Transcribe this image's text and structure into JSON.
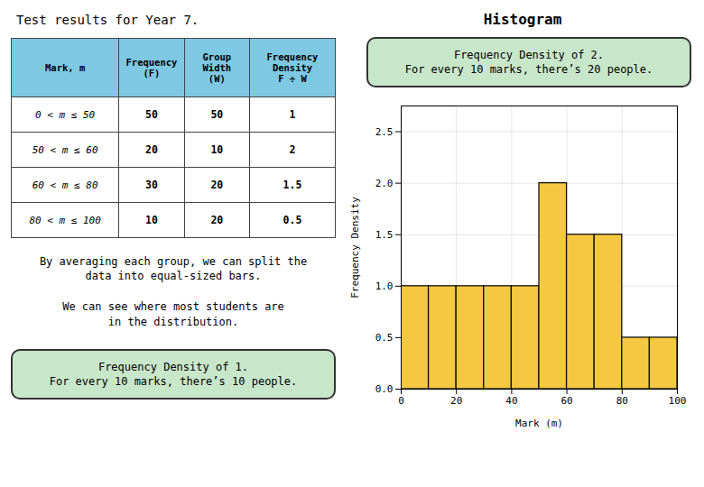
{
  "chart_data": {
    "type": "histogram",
    "title": "Histogram",
    "bins": [
      0,
      10,
      20,
      30,
      40,
      50,
      60,
      70,
      80,
      90,
      100
    ],
    "values": [
      1,
      1,
      1,
      1,
      1,
      2,
      1.5,
      1.5,
      0.5,
      0.5
    ],
    "color": "#F5C842",
    "xlabel": "Mark (m)",
    "ylabel": "Frequency Density",
    "xlim": [
      0,
      100
    ],
    "ylim": [
      0,
      2.75
    ],
    "xticks": [
      0,
      20,
      40,
      60,
      80,
      100
    ],
    "yticks": [
      {
        "value": 0,
        "label": "0.0"
      },
      0.5,
      {
        "value": 1,
        "label": "1.0"
      },
      1.5,
      {
        "value": 2,
        "label": "2.0"
      },
      2.5
    ],
    "grid": true,
    "table": {
      "title": "Test results for Year 7.",
      "headers": [
        "Mark, m",
        "Frequency\n(F)",
        "Group\nWidth\n(W)",
        "Frequency\nDensity\nF ÷ W"
      ],
      "rows": [
        [
          "0 < m ≤ 50",
          "50",
          "50",
          "1"
        ],
        [
          "50 < m ≤ 60",
          "20",
          "10",
          "2"
        ],
        [
          "60 < m ≤ 80",
          "30",
          "20",
          "1.5"
        ],
        [
          "80 < m ≤ 100",
          "10",
          "20",
          "0.5"
        ]
      ]
    },
    "annotations": [
      "By averaging each group, we can split the\ndata into equal-sized bars.",
      "We can see where most students are\nin the distribution.",
      "Frequency Density of 1.\nFor every 10 marks, there’s 10 people.",
      "Frequency Density of 2.\nFor every 10 marks, there’s 20 people."
    ]
  }
}
